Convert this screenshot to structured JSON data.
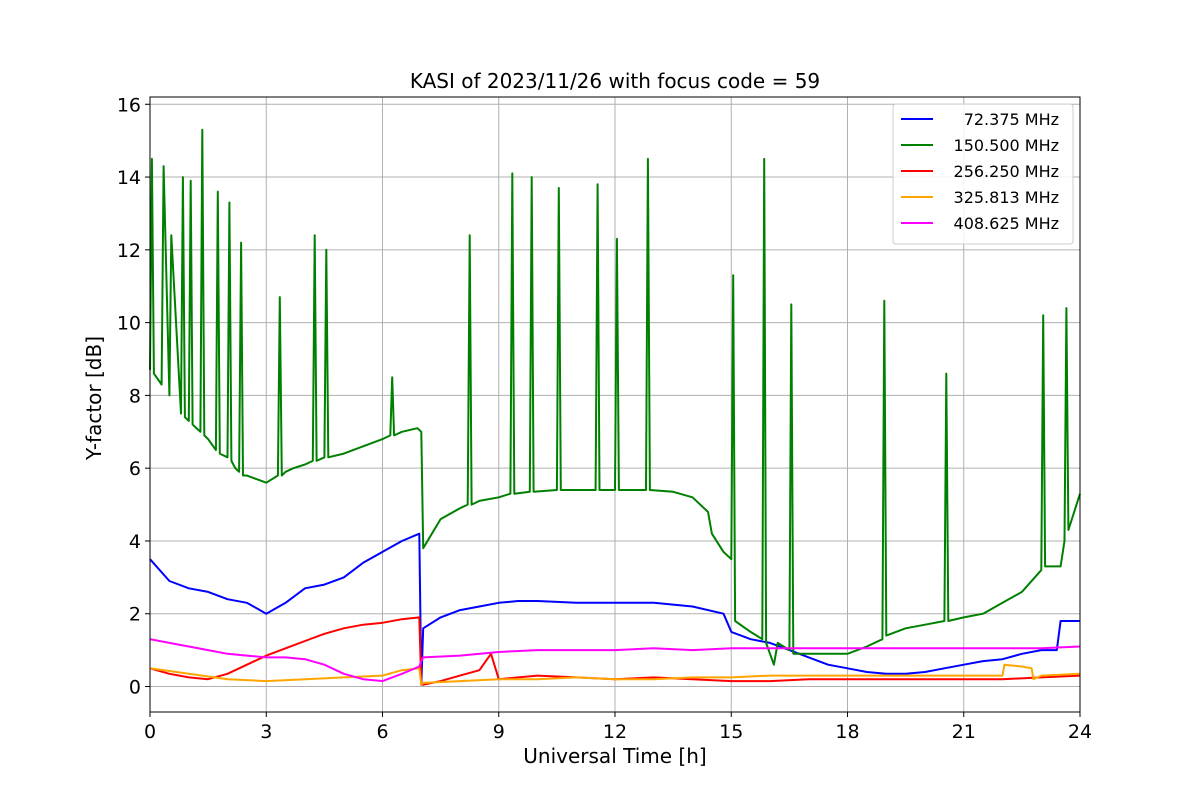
{
  "chart_data": {
    "type": "line",
    "title": "KASI of 2023/11/26 with focus code = 59",
    "xlabel": "Universal Time [h]",
    "ylabel": "Y-factor [dB]",
    "xlim": [
      0,
      24
    ],
    "ylim": [
      -0.7,
      16.2
    ],
    "xticks": [
      0,
      3,
      6,
      9,
      12,
      15,
      18,
      21,
      24
    ],
    "yticks": [
      0,
      2,
      4,
      6,
      8,
      10,
      12,
      14,
      16
    ],
    "grid": true,
    "legend_position": "top-right",
    "series": [
      {
        "name": "72.375 MHz",
        "color": "#0000ff",
        "x": [
          0,
          0.5,
          1,
          1.5,
          2,
          2.5,
          3,
          3.5,
          4,
          4.5,
          5,
          5.5,
          6,
          6.5,
          6.95,
          7.0,
          7.05,
          7.5,
          8,
          8.5,
          9,
          9.5,
          10,
          11,
          12,
          13,
          14,
          14.8,
          15,
          15.5,
          16,
          16.5,
          17,
          17.5,
          18,
          18.5,
          19,
          19.5,
          20,
          20.5,
          21,
          21.5,
          22,
          22.5,
          23,
          23.4,
          23.5,
          24
        ],
        "y": [
          3.5,
          2.9,
          2.7,
          2.6,
          2.4,
          2.3,
          2.0,
          2.3,
          2.7,
          2.8,
          3.0,
          3.4,
          3.7,
          4.0,
          4.2,
          0.05,
          1.6,
          1.9,
          2.1,
          2.2,
          2.3,
          2.35,
          2.35,
          2.3,
          2.3,
          2.3,
          2.2,
          2.0,
          1.5,
          1.3,
          1.2,
          1.0,
          0.8,
          0.6,
          0.5,
          0.4,
          0.35,
          0.35,
          0.4,
          0.5,
          0.6,
          0.7,
          0.75,
          0.9,
          1.0,
          1.0,
          1.8,
          1.8
        ]
      },
      {
        "name": "150.500 MHz",
        "color": "#008000",
        "x": [
          0,
          0.05,
          0.1,
          0.3,
          0.35,
          0.5,
          0.55,
          0.8,
          0.85,
          0.9,
          1.0,
          1.05,
          1.1,
          1.3,
          1.35,
          1.4,
          1.5,
          1.7,
          1.75,
          1.8,
          2.0,
          2.05,
          2.1,
          2.2,
          2.3,
          2.35,
          2.4,
          2.5,
          3.0,
          3.3,
          3.35,
          3.4,
          3.5,
          3.7,
          4.0,
          4.2,
          4.25,
          4.3,
          4.5,
          4.55,
          4.6,
          5.0,
          5.5,
          6.0,
          6.2,
          6.25,
          6.3,
          6.5,
          6.9,
          7.0,
          7.05,
          7.5,
          8.0,
          8.2,
          8.25,
          8.3,
          8.5,
          9.0,
          9.3,
          9.35,
          9.4,
          9.8,
          9.85,
          9.9,
          10.5,
          10.55,
          10.6,
          11.5,
          11.55,
          11.6,
          12.0,
          12.05,
          12.1,
          12.8,
          12.85,
          12.9,
          13.5,
          14.0,
          14.4,
          14.5,
          14.8,
          15.0,
          15.05,
          15.1,
          15.5,
          15.8,
          15.85,
          15.9,
          16.1,
          16.2,
          16.5,
          16.55,
          16.6,
          17.0,
          17.5,
          18.0,
          18.5,
          18.9,
          18.95,
          19.0,
          19.5,
          20.0,
          20.5,
          20.55,
          20.6,
          21.0,
          21.5,
          22.0,
          22.5,
          23.0,
          23.05,
          23.1,
          23.5,
          23.6,
          23.65,
          23.7,
          24.0
        ],
        "y": [
          8.7,
          14.5,
          8.6,
          8.3,
          14.3,
          8.0,
          12.4,
          7.5,
          14.0,
          7.4,
          7.3,
          13.9,
          7.2,
          7.0,
          15.3,
          6.9,
          6.8,
          6.5,
          13.6,
          6.4,
          6.3,
          13.3,
          6.2,
          6.0,
          5.9,
          12.2,
          5.8,
          5.8,
          5.6,
          5.8,
          10.7,
          5.8,
          5.9,
          6.0,
          6.1,
          6.2,
          12.4,
          6.2,
          6.3,
          12.0,
          6.3,
          6.4,
          6.6,
          6.8,
          6.9,
          8.5,
          6.9,
          7.0,
          7.1,
          7.0,
          3.8,
          4.6,
          4.9,
          5.0,
          12.4,
          5.0,
          5.1,
          5.2,
          5.3,
          14.1,
          5.3,
          5.35,
          14.0,
          5.35,
          5.4,
          13.7,
          5.4,
          5.4,
          13.8,
          5.4,
          5.4,
          12.3,
          5.4,
          5.4,
          14.5,
          5.4,
          5.35,
          5.2,
          4.8,
          4.2,
          3.7,
          3.5,
          11.3,
          1.8,
          1.5,
          1.3,
          14.5,
          1.2,
          0.6,
          1.2,
          1.0,
          10.5,
          0.9,
          0.9,
          0.9,
          0.9,
          1.1,
          1.3,
          10.6,
          1.4,
          1.6,
          1.7,
          1.8,
          8.6,
          1.8,
          1.9,
          2.0,
          2.3,
          2.6,
          3.2,
          10.2,
          3.3,
          3.3,
          4.0,
          10.4,
          4.3,
          5.3
        ]
      },
      {
        "name": "256.250 MHz",
        "color": "#ff0000",
        "x": [
          0,
          0.5,
          1.0,
          1.5,
          2.0,
          2.5,
          3.0,
          3.5,
          4.0,
          4.5,
          5.0,
          5.5,
          6.0,
          6.5,
          6.95,
          7.0,
          7.05,
          7.5,
          8.0,
          8.5,
          8.8,
          9.0,
          9.5,
          10,
          11,
          12,
          13,
          14,
          15,
          16,
          17,
          18,
          19,
          20,
          21,
          22,
          23,
          24
        ],
        "y": [
          0.5,
          0.35,
          0.25,
          0.2,
          0.35,
          0.6,
          0.85,
          1.05,
          1.25,
          1.45,
          1.6,
          1.7,
          1.75,
          1.85,
          1.9,
          0.05,
          0.05,
          0.15,
          0.3,
          0.45,
          0.9,
          0.2,
          0.25,
          0.3,
          0.25,
          0.2,
          0.25,
          0.2,
          0.15,
          0.15,
          0.2,
          0.2,
          0.2,
          0.2,
          0.2,
          0.2,
          0.25,
          0.3
        ]
      },
      {
        "name": "325.813 MHz",
        "color": "#ffa500",
        "x": [
          0,
          1,
          2,
          3,
          4,
          5,
          6,
          6.5,
          6.95,
          7.0,
          7.05,
          8,
          9,
          10,
          11,
          12,
          13,
          14,
          15,
          16,
          17,
          18,
          19,
          20,
          21,
          22.0,
          22.05,
          22.5,
          22.75,
          22.8,
          23,
          24
        ],
        "y": [
          0.5,
          0.35,
          0.2,
          0.15,
          0.2,
          0.25,
          0.3,
          0.45,
          0.5,
          0.05,
          0.1,
          0.15,
          0.2,
          0.2,
          0.25,
          0.2,
          0.2,
          0.25,
          0.25,
          0.3,
          0.3,
          0.3,
          0.3,
          0.3,
          0.3,
          0.3,
          0.6,
          0.55,
          0.5,
          0.2,
          0.3,
          0.35
        ]
      },
      {
        "name": "408.625 MHz",
        "color": "#ff00ff",
        "x": [
          0,
          0.5,
          1.0,
          1.5,
          2.0,
          2.5,
          3.0,
          3.5,
          4.0,
          4.5,
          5.0,
          5.5,
          6.0,
          6.5,
          6.95,
          7.0,
          7.05,
          8,
          9,
          10,
          11,
          12,
          13,
          14,
          15,
          16,
          17,
          18,
          19,
          20,
          21,
          22,
          23,
          24
        ],
        "y": [
          1.3,
          1.2,
          1.1,
          1.0,
          0.9,
          0.85,
          0.8,
          0.8,
          0.75,
          0.6,
          0.35,
          0.2,
          0.15,
          0.35,
          0.55,
          0.7,
          0.8,
          0.85,
          0.95,
          1.0,
          1.0,
          1.0,
          1.05,
          1.0,
          1.05,
          1.05,
          1.05,
          1.05,
          1.05,
          1.05,
          1.05,
          1.05,
          1.05,
          1.1
        ]
      }
    ]
  }
}
